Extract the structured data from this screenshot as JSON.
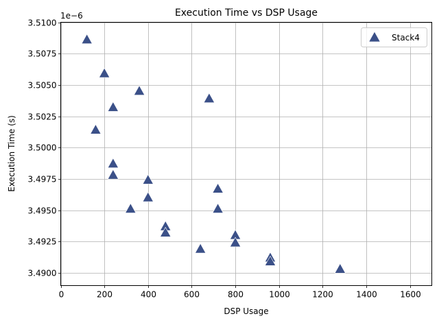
{
  "chart_data": {
    "type": "scatter",
    "title": "Execution Time vs DSP Usage",
    "xlabel": "DSP Usage",
    "ylabel": "Execution Time (s)",
    "y_offset_text": "1e−6",
    "xlim": [
      0,
      1700
    ],
    "ylim": [
      3.489,
      3.51
    ],
    "x_ticks": [
      0,
      200,
      400,
      600,
      800,
      1000,
      1200,
      1400,
      1600
    ],
    "x_tick_labels": [
      "0",
      "200",
      "400",
      "600",
      "800",
      "1000",
      "1200",
      "1400",
      "1600"
    ],
    "y_ticks": [
      3.49,
      3.4925,
      3.495,
      3.4975,
      3.5,
      3.5025,
      3.505,
      3.5075,
      3.51
    ],
    "y_tick_labels": [
      "3.4900",
      "3.4925",
      "3.4950",
      "3.4975",
      "3.5000",
      "3.5025",
      "3.5050",
      "3.5075",
      "3.5100"
    ],
    "grid": true,
    "legend_position": "top-right",
    "series": [
      {
        "name": "Stack4",
        "marker": "triangle-up",
        "color": "#3b5088",
        "points": [
          {
            "x": 120,
            "y": 3.5086
          },
          {
            "x": 200,
            "y": 3.5059
          },
          {
            "x": 360,
            "y": 3.5045
          },
          {
            "x": 680,
            "y": 3.5039
          },
          {
            "x": 240,
            "y": 3.5032
          },
          {
            "x": 160,
            "y": 3.5014
          },
          {
            "x": 240,
            "y": 3.4987
          },
          {
            "x": 240,
            "y": 3.4978
          },
          {
            "x": 400,
            "y": 3.4974
          },
          {
            "x": 720,
            "y": 3.4967
          },
          {
            "x": 400,
            "y": 3.496
          },
          {
            "x": 320,
            "y": 3.4951
          },
          {
            "x": 720,
            "y": 3.4951
          },
          {
            "x": 480,
            "y": 3.4937
          },
          {
            "x": 480,
            "y": 3.4932
          },
          {
            "x": 800,
            "y": 3.493
          },
          {
            "x": 800,
            "y": 3.4924
          },
          {
            "x": 640,
            "y": 3.4919
          },
          {
            "x": 960,
            "y": 3.4912
          },
          {
            "x": 960,
            "y": 3.4909
          },
          {
            "x": 1280,
            "y": 3.4903
          }
        ]
      }
    ]
  }
}
